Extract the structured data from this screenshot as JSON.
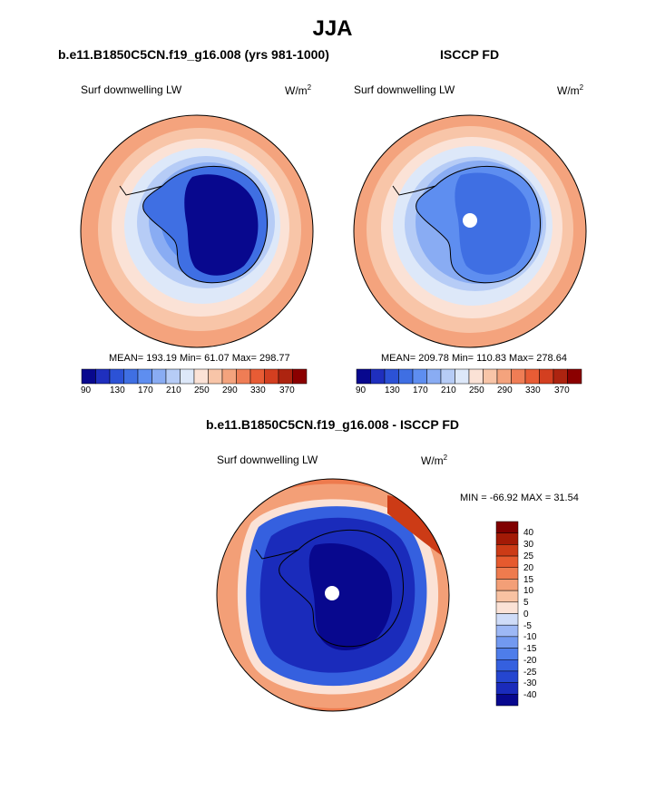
{
  "title": "JJA",
  "panels": [
    {
      "subtitle": "b.e11.B1850C5CN.f19_g16.008 (yrs 981-1000)",
      "variable": "Surf downwelling LW",
      "units": "W/m",
      "units_sup": "2",
      "stats": "MEAN= 193.19  Min= 61.07  Max= 298.77",
      "colorbar_ticks": [
        "90",
        "130",
        "170",
        "210",
        "250",
        "290",
        "330",
        "370"
      ]
    },
    {
      "subtitle": "ISCCP FD",
      "variable": "Surf downwelling LW",
      "units": "W/m",
      "units_sup": "2",
      "stats": "MEAN= 209.78  Min= 110.83  Max= 278.64",
      "colorbar_ticks": [
        "90",
        "130",
        "170",
        "210",
        "250",
        "290",
        "330",
        "370"
      ]
    },
    {
      "subtitle": "b.e11.B1850C5CN.f19_g16.008 - ISCCP FD",
      "variable": "Surf downwelling LW",
      "units": "W/m",
      "units_sup": "2",
      "stats": "MIN = -66.92 MAX =  31.54",
      "colorbar_ticks": [
        "40",
        "30",
        "25",
        "20",
        "15",
        "10",
        "5",
        "0",
        "-5",
        "-10",
        "-15",
        "-20",
        "-25",
        "-30",
        "-40"
      ]
    }
  ],
  "colors": {
    "abs_scale": [
      "#08088e",
      "#1f2fbe",
      "#2c52d6",
      "#3f6fe3",
      "#5e8ef0",
      "#89acf3",
      "#b6ccf6",
      "#dde8f9",
      "#fbe2d6",
      "#f8c5a8",
      "#f4a37d",
      "#ef7d55",
      "#e85c35",
      "#d33f20",
      "#ad2410",
      "#8b0000"
    ],
    "diff_scale": [
      "#08088e",
      "#1a2bbb",
      "#2546d0",
      "#3560df",
      "#4e7dea",
      "#7299f0",
      "#9db8f5",
      "#cfdcf8",
      "#fbe2d6",
      "#f8c2a2",
      "#f39f77",
      "#ee7b4e",
      "#e65a2e",
      "#cc3b16",
      "#a31a06",
      "#800000"
    ]
  }
}
